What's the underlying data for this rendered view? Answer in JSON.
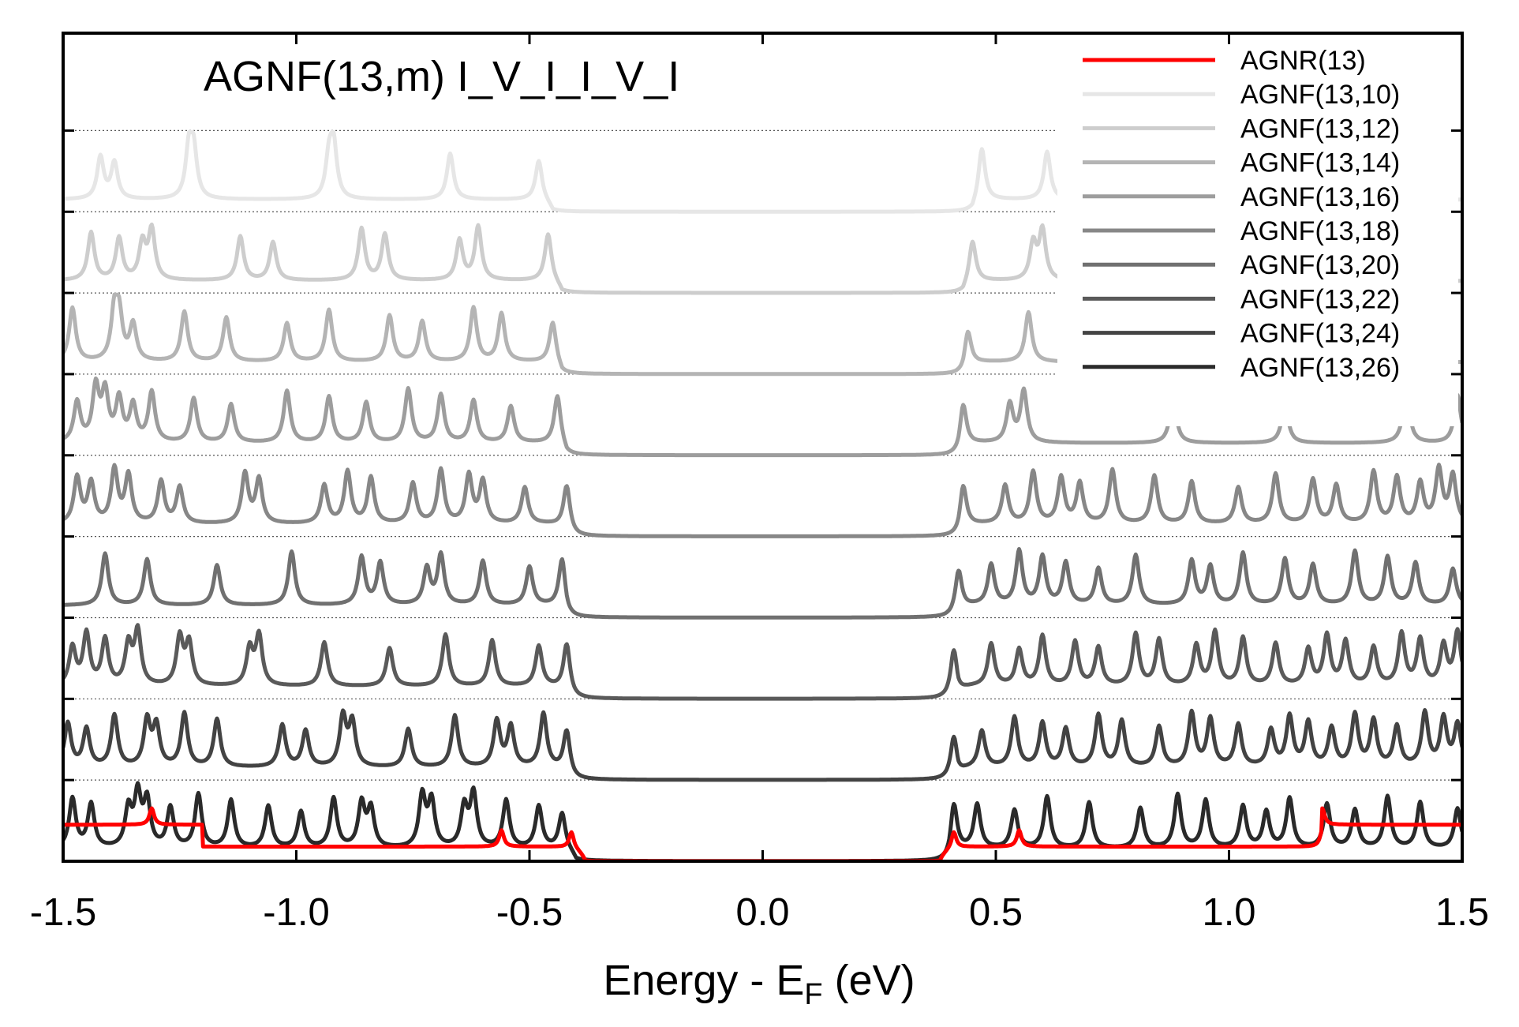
{
  "chart_data": {
    "type": "line",
    "title": "AGNF(13,m) I_V_I_I_V_I",
    "xlabel": "Energy - E",
    "xlabel_sub": "F",
    "xlabel_suffix": " (eV)",
    "ylabel": "",
    "xlim": [
      -1.5,
      1.5
    ],
    "ylim": [
      0,
      10.2
    ],
    "grid": false,
    "legend_position": "top-right",
    "x_ticks": [
      {
        "value": -1.5,
        "label": "-1.5"
      },
      {
        "value": -1.0,
        "label": "-1.0"
      },
      {
        "value": -0.5,
        "label": "-0.5"
      },
      {
        "value": 0.0,
        "label": "0.0"
      },
      {
        "value": 0.5,
        "label": "0.5"
      },
      {
        "value": 1.0,
        "label": "1.0"
      },
      {
        "value": 1.5,
        "label": "1.5"
      }
    ],
    "y_baselines": [
      0,
      1,
      2,
      3,
      4,
      5,
      6,
      7,
      8,
      9
    ],
    "series": [
      {
        "name": "AGNR(13)",
        "color": "#ff0000",
        "offset": 0,
        "gap": 0.38,
        "kind": "ribbon",
        "peaks": [
          -1.31,
          -0.56,
          -0.41,
          0.41,
          0.55,
          1.2
        ]
      },
      {
        "name": "AGNF(13,10)",
        "color": "#e6e6e6",
        "offset": 8,
        "gap": 0.45,
        "kind": "flake",
        "peaks": [
          -1.42,
          -1.39,
          -1.23,
          -1.22,
          -0.93,
          -0.92,
          -0.67,
          -0.48,
          0.47,
          0.61
        ]
      },
      {
        "name": "AGNF(13,12)",
        "color": "#cdcdcd",
        "offset": 7,
        "gap": 0.43,
        "kind": "flake",
        "peaks": [
          -1.44,
          -1.38,
          -1.33,
          -1.31,
          -1.12,
          -1.05,
          -0.86,
          -0.81,
          -0.65,
          -0.61,
          -0.46,
          0.45,
          0.58,
          0.6
        ]
      },
      {
        "name": "AGNF(13,14)",
        "color": "#b4b4b4",
        "offset": 6,
        "gap": 0.43,
        "kind": "flake",
        "peaks": [
          -1.48,
          -1.39,
          -1.38,
          -1.35,
          -1.24,
          -1.15,
          -1.02,
          -0.93,
          -0.8,
          -0.73,
          -0.62,
          -0.56,
          -0.45,
          0.44,
          0.57
        ]
      },
      {
        "name": "AGNF(13,16)",
        "color": "#9d9d9d",
        "offset": 5,
        "gap": 0.42,
        "kind": "flake",
        "peaks": [
          -1.47,
          -1.43,
          -1.41,
          -1.38,
          -1.35,
          -1.31,
          -1.22,
          -1.14,
          -1.02,
          -0.93,
          -0.85,
          -0.76,
          -0.69,
          -0.62,
          -0.54,
          -0.44,
          0.43,
          0.53,
          0.56,
          0.88,
          1.12,
          1.38,
          1.49
        ]
      },
      {
        "name": "AGNF(13,18)",
        "color": "#878787",
        "offset": 4,
        "gap": 0.42,
        "kind": "flake",
        "peaks": [
          -1.47,
          -1.44,
          -1.39,
          -1.36,
          -1.29,
          -1.25,
          -1.11,
          -1.08,
          -0.94,
          -0.89,
          -0.84,
          -0.75,
          -0.69,
          -0.63,
          -0.6,
          -0.51,
          -0.42,
          0.43,
          0.52,
          0.58,
          0.64,
          0.68,
          0.75,
          0.84,
          0.92,
          1.02,
          1.1,
          1.18,
          1.23,
          1.31,
          1.36,
          1.41,
          1.45,
          1.48
        ]
      },
      {
        "name": "AGNF(13,20)",
        "color": "#707070",
        "offset": 3,
        "gap": 0.42,
        "kind": "flake",
        "peaks": [
          -1.41,
          -1.32,
          -1.17,
          -1.01,
          -0.86,
          -0.82,
          -0.72,
          -0.69,
          -0.6,
          -0.5,
          -0.43,
          0.42,
          0.49,
          0.55,
          0.6,
          0.65,
          0.72,
          0.8,
          0.92,
          0.96,
          1.03,
          1.12,
          1.18,
          1.27,
          1.34,
          1.4,
          1.48
        ]
      },
      {
        "name": "AGNF(13,22)",
        "color": "#5a5a5a",
        "offset": 2,
        "gap": 0.42,
        "kind": "flake",
        "peaks": [
          -1.48,
          -1.45,
          -1.41,
          -1.36,
          -1.34,
          -1.25,
          -1.23,
          -1.1,
          -1.08,
          -0.94,
          -0.8,
          -0.68,
          -0.58,
          -0.48,
          -0.42,
          0.41,
          0.49,
          0.55,
          0.6,
          0.67,
          0.72,
          0.8,
          0.85,
          0.93,
          0.97,
          1.03,
          1.1,
          1.17,
          1.21,
          1.25,
          1.31,
          1.37,
          1.41,
          1.46,
          1.49
        ]
      },
      {
        "name": "AGNF(13,24)",
        "color": "#434343",
        "offset": 1,
        "gap": 0.42,
        "kind": "flake",
        "peaks": [
          -1.49,
          -1.45,
          -1.39,
          -1.32,
          -1.3,
          -1.24,
          -1.17,
          -1.03,
          -0.98,
          -0.9,
          -0.88,
          -0.76,
          -0.66,
          -0.57,
          -0.54,
          -0.47,
          -0.42,
          0.41,
          0.47,
          0.54,
          0.6,
          0.65,
          0.72,
          0.77,
          0.85,
          0.92,
          0.96,
          1.02,
          1.09,
          1.13,
          1.17,
          1.22,
          1.27,
          1.31,
          1.36,
          1.42,
          1.46,
          1.49
        ]
      },
      {
        "name": "AGNF(13,26)",
        "color": "#2a2a2a",
        "offset": 0,
        "gap": 0.4,
        "kind": "flake",
        "peaks": [
          -1.48,
          -1.44,
          -1.36,
          -1.34,
          -1.32,
          -1.27,
          -1.21,
          -1.14,
          -1.06,
          -0.99,
          -0.92,
          -0.86,
          -0.84,
          -0.73,
          -0.71,
          -0.64,
          -0.62,
          -0.55,
          -0.48,
          -0.43,
          0.41,
          0.46,
          0.54,
          0.61,
          0.7,
          0.81,
          0.89,
          0.95,
          1.03,
          1.08,
          1.13,
          1.21,
          1.27,
          1.34,
          1.41,
          1.49
        ]
      }
    ]
  }
}
